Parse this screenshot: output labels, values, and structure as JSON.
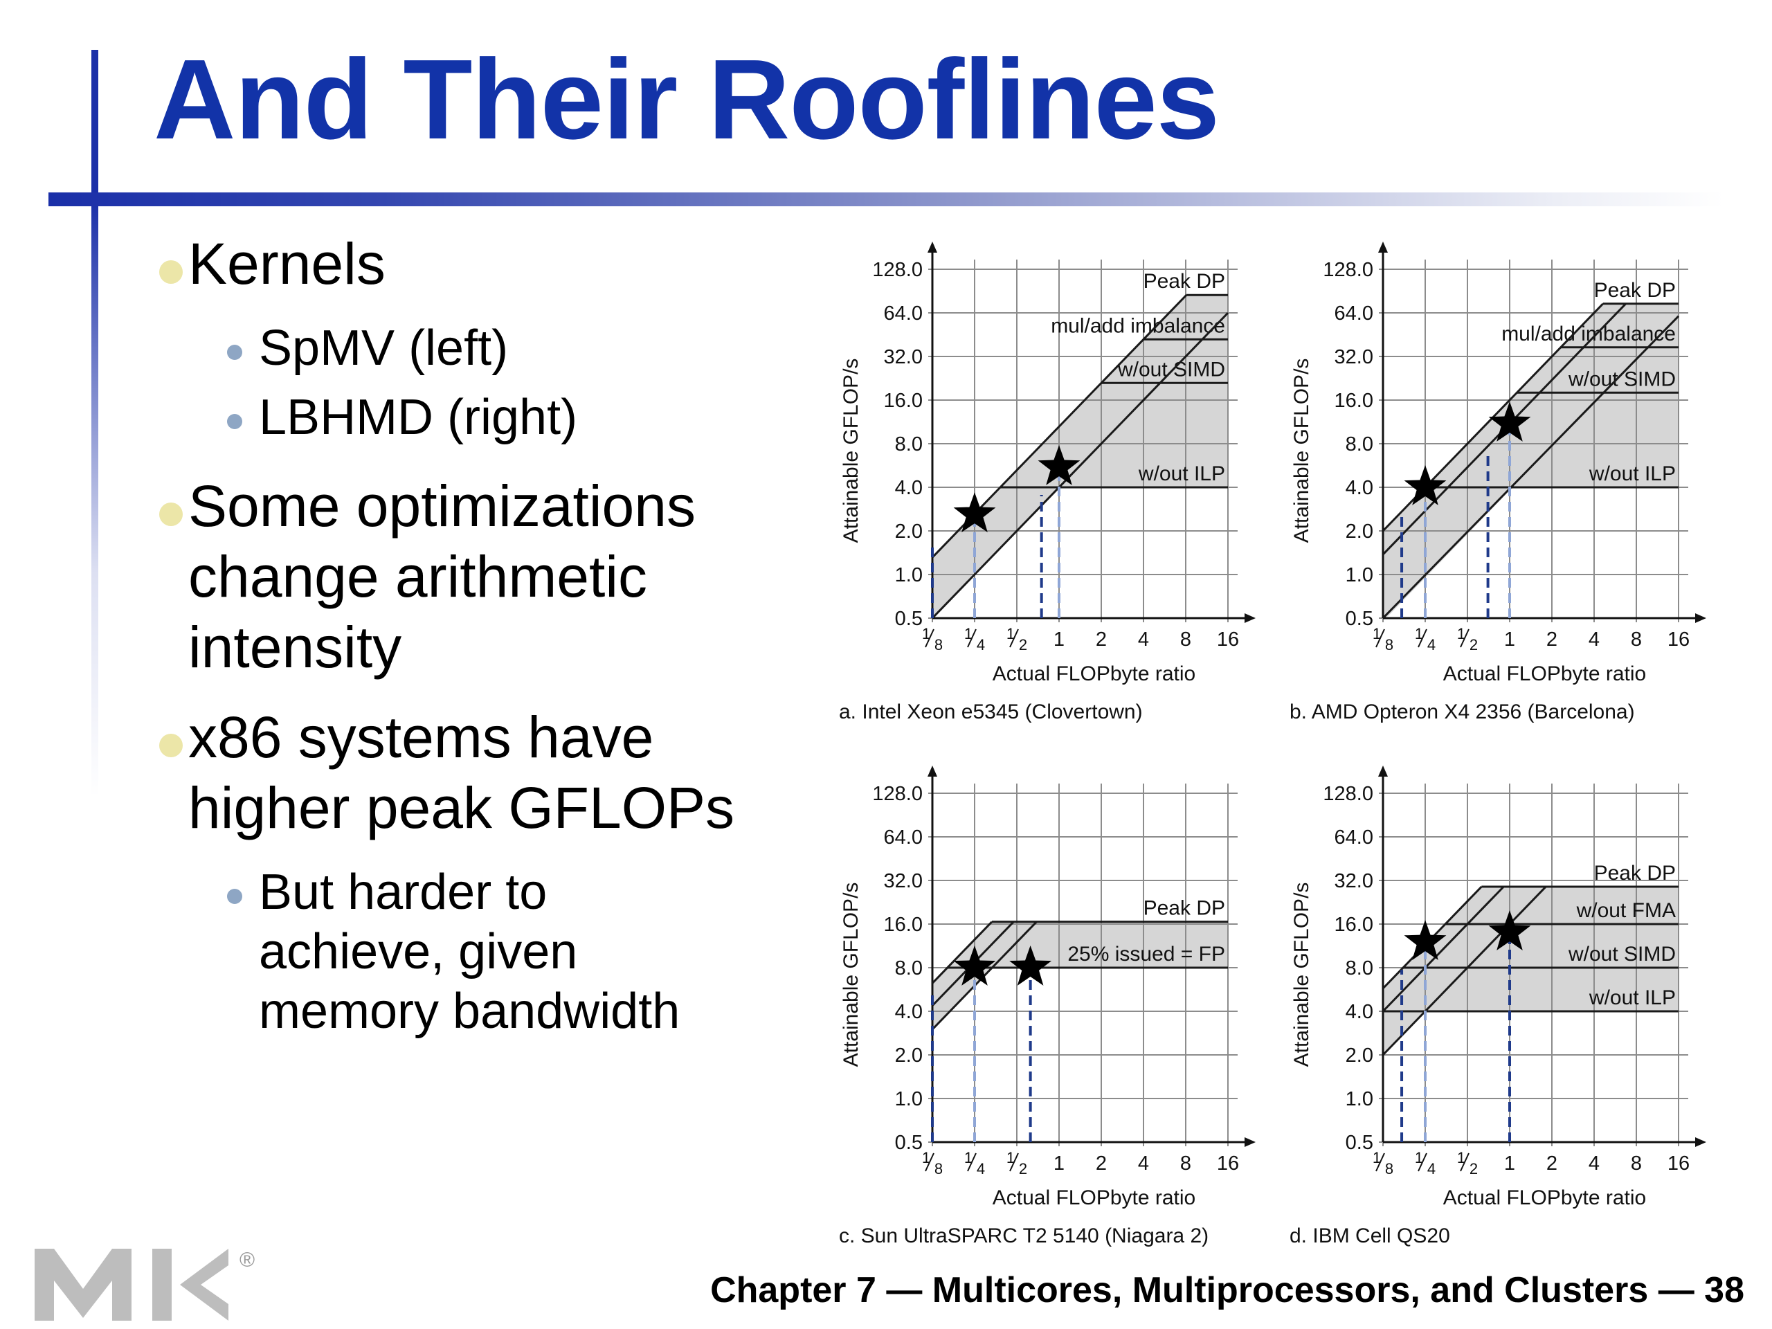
{
  "slide": {
    "title": "And Their Rooflines",
    "bullets": [
      {
        "text": "Kernels",
        "sub": [
          "SpMV (left)",
          "LBHMD (right)"
        ]
      },
      {
        "text": "Some optimizations change arithmetic intensity",
        "sub": []
      },
      {
        "text": "x86 systems have higher peak GFLOPs",
        "sub": [
          "But harder to achieve, given memory bandwidth"
        ]
      }
    ],
    "footer": "Chapter 7 — Multicores, Multiprocessors, and Clusters — 38",
    "logo": {
      "text": "MK",
      "mark": "®"
    }
  },
  "chart_common": {
    "ylabel": "Attainable GFLOP/s",
    "xlabel": "Actual FLOPbyte ratio",
    "y_ticks": [
      0.5,
      1.0,
      2.0,
      4.0,
      8.0,
      16.0,
      32.0,
      64.0,
      128.0
    ],
    "y_tick_labels": [
      "0.5",
      "1.0",
      "2.0",
      "4.0",
      "8.0",
      "16.0",
      "32.0",
      "64.0",
      "128.0"
    ],
    "x_ticks": [
      0.125,
      0.25,
      0.5,
      1,
      2,
      4,
      8,
      16
    ],
    "x_tick_labels": [
      {
        "n": "1",
        "d": "8"
      },
      {
        "n": "1",
        "d": "4"
      },
      {
        "n": "1",
        "d": "2"
      },
      {
        "n": "1",
        "d": ""
      },
      {
        "n": "2",
        "d": ""
      },
      {
        "n": "4",
        "d": ""
      },
      {
        "n": "8",
        "d": ""
      },
      {
        "n": "16",
        "d": ""
      }
    ],
    "scale": "log2",
    "grid": true,
    "colors": {
      "shade": "#d6d6d6",
      "grid": "#8c8c8c",
      "line": "#1a1a1a",
      "dash_dark": "#1f3a8a",
      "dash_light": "#8fa6d6"
    }
  },
  "chart_data": [
    {
      "type": "line",
      "caption": "a. Intel Xeon e5345 (Clovertown)",
      "xlim": [
        0.125,
        16
      ],
      "ylim": [
        0.5,
        128
      ],
      "ceilings": [
        {
          "label": "Peak DP",
          "y": 85,
          "x_end": 16
        },
        {
          "label": "mul/add imbalance",
          "y": 42,
          "x_end": 16
        },
        {
          "label": "w/out SIMD",
          "y": 21,
          "x_end": 16
        },
        {
          "label": "w/out ILP",
          "y": 4,
          "x_end": 16
        }
      ],
      "bandwidth_lines": [
        {
          "y_at_1": 10.5
        },
        {
          "y_at_1": 4
        }
      ],
      "shade": {
        "ceil_top": 85,
        "bw_high": 10.5,
        "bw_low": 4
      },
      "kernels": [
        {
          "x": 0.25,
          "y": 2.6,
          "drop_lines": [
            0.125,
            0.25
          ]
        },
        {
          "x": 1,
          "y": 5.5,
          "drop_lines": [
            0.75,
            1
          ]
        }
      ]
    },
    {
      "type": "line",
      "caption": "b. AMD Opteron X4 2356 (Barcelona)",
      "xlim": [
        0.125,
        16
      ],
      "ylim": [
        0.5,
        128
      ],
      "ceilings": [
        {
          "label": "Peak DP",
          "y": 74,
          "x_end": 16
        },
        {
          "label": "mul/add imbalance",
          "y": 37,
          "x_end": 16
        },
        {
          "label": "w/out SIMD",
          "y": 18,
          "x_end": 16
        },
        {
          "label": "w/out ILP",
          "y": 4,
          "x_end": 16
        }
      ],
      "bandwidth_lines": [
        {
          "y_at_1": 16
        },
        {
          "y_at_1": 11
        },
        {
          "y_at_1": 3.8
        }
      ],
      "shade": {
        "ceil_top": 74,
        "bw_high": 16,
        "bw_low": 3.8
      },
      "kernels": [
        {
          "x": 0.25,
          "y": 4,
          "drop_lines": [
            0.17,
            0.25
          ]
        },
        {
          "x": 1,
          "y": 11,
          "drop_lines": [
            0.7,
            1
          ]
        }
      ]
    },
    {
      "type": "line",
      "caption": "c. Sun UltraSPARC T2 5140 (Niagara 2)",
      "xlim": [
        0.125,
        16
      ],
      "ylim": [
        0.5,
        128
      ],
      "ceilings": [
        {
          "label": "Peak DP",
          "y": 16.6,
          "x_end": 16
        },
        {
          "label": "25% issued = FP",
          "y": 8,
          "x_end": 16
        }
      ],
      "bandwidth_lines": [
        {
          "y_at_1": 50
        },
        {
          "y_at_1": 35
        },
        {
          "y_at_1": 24
        }
      ],
      "shade": {
        "ceil_top": 16.6,
        "bw_high": 50,
        "bw_low": 24
      },
      "kernels": [
        {
          "x": 0.25,
          "y": 8,
          "drop_lines": [
            0.125,
            0.25
          ]
        },
        {
          "x": 0.625,
          "y": 8,
          "drop_lines": [
            0.625
          ]
        }
      ]
    },
    {
      "type": "line",
      "caption": "d. IBM Cell QS20",
      "xlim": [
        0.125,
        16
      ],
      "ylim": [
        0.5,
        128
      ],
      "ceilings": [
        {
          "label": "Peak DP",
          "y": 29,
          "x_end": 16
        },
        {
          "label": "w/out FMA",
          "y": 16,
          "x_end": 16
        },
        {
          "label": "w/out SIMD",
          "y": 8,
          "x_end": 16
        },
        {
          "label": "w/out ILP",
          "y": 4,
          "x_end": 16
        }
      ],
      "bandwidth_lines": [
        {
          "y_at_1": 46
        },
        {
          "y_at_1": 32
        },
        {
          "y_at_1": 16
        }
      ],
      "shade": {
        "ceil_top": 29,
        "bw_high": 46,
        "bw_low": 16
      },
      "kernels": [
        {
          "x": 0.25,
          "y": 12,
          "drop_lines": [
            0.17,
            0.25
          ]
        },
        {
          "x": 1,
          "y": 14,
          "drop_lines": [
            1
          ]
        }
      ]
    }
  ]
}
